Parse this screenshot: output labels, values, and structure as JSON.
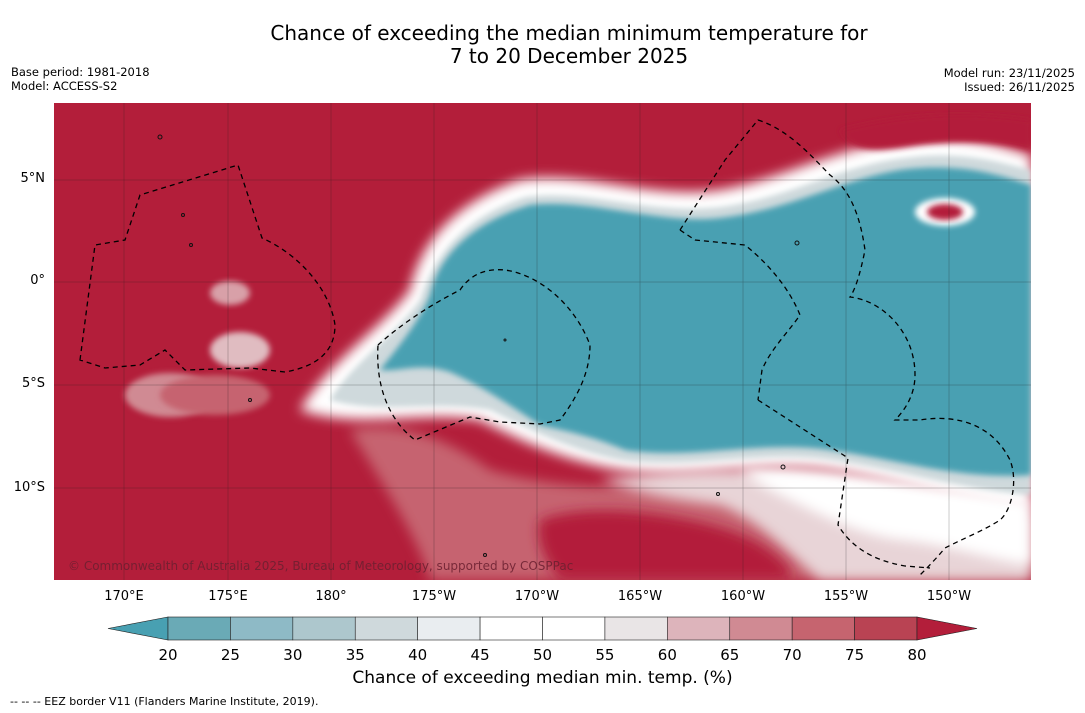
{
  "title": {
    "line1": "Chance of exceeding the median minimum temperature for",
    "line2": "7 to 20 December 2025"
  },
  "meta_left": {
    "base_period": "Base period: 1981-2018",
    "model": "Model: ACCESS-S2"
  },
  "meta_right": {
    "model_run": "Model run: 23/11/2025",
    "issued": "Issued: 26/11/2025"
  },
  "map": {
    "latitude_labels": [
      "5°N",
      "0°",
      "5°S",
      "10°S"
    ],
    "longitude_labels": [
      "170°E",
      "175°E",
      "180°",
      "175°W",
      "170°W",
      "165°W",
      "160°W",
      "155°W",
      "150°W"
    ],
    "copyright": "© Commonwealth of Australia 2025, Bureau of Meteorology, supported by COSPPac",
    "colors": {
      "high": "#b31e3a",
      "low": "#48a0b2",
      "neutral": "#ffffff"
    }
  },
  "colorbar": {
    "ticks": [
      "20",
      "25",
      "30",
      "35",
      "40",
      "45",
      "50",
      "55",
      "60",
      "65",
      "70",
      "75",
      "80"
    ],
    "colors": [
      "#48a0b2",
      "#6aaab6",
      "#8ebac6",
      "#adc7cd",
      "#cfd9dc",
      "#e9edf0",
      "#ffffff",
      "#ffffff",
      "#e9e5e6",
      "#ddb4bb",
      "#d08a93",
      "#c6646f",
      "#b94353",
      "#b31e3a"
    ],
    "title": "Chance of exceeding median min. temp. (%)"
  },
  "footnote": "--  --  -- EEZ border V11 (Flanders Marine Institute, 2019)."
}
